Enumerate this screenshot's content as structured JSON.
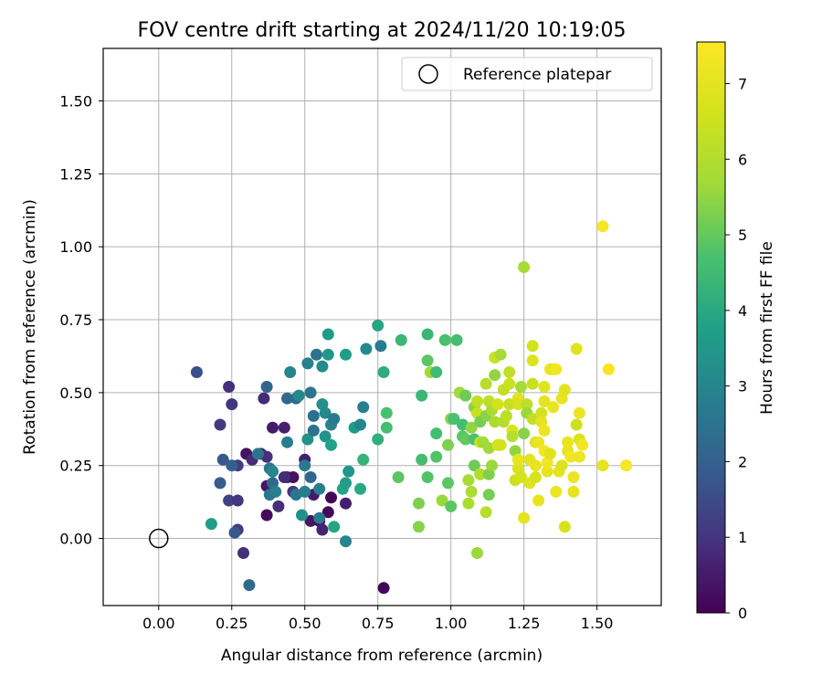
{
  "chart_data": {
    "type": "scatter",
    "title": "FOV centre drift starting at 2024/11/20 10:19:05",
    "xlabel": "Angular distance from reference (arcmin)",
    "ylabel": "Rotation from reference (arcmin)",
    "xlim": [
      -0.19,
      1.72
    ],
    "ylim": [
      -0.23,
      1.68
    ],
    "xticks": [
      "0.00",
      "0.25",
      "0.50",
      "0.75",
      "1.00",
      "1.25",
      "1.50"
    ],
    "yticks": [
      "0.00",
      "0.25",
      "0.50",
      "0.75",
      "1.00",
      "1.25",
      "1.50"
    ],
    "grid": true,
    "colormap": "viridis",
    "colorbar": {
      "label": "Hours from first FF file",
      "range": [
        0,
        7.55
      ],
      "ticks": [
        "0",
        "1",
        "2",
        "3",
        "4",
        "5",
        "6",
        "7"
      ]
    },
    "legend": {
      "position": "top-right",
      "entries": [
        {
          "label": "Reference platepar",
          "marker": "open-circle",
          "x": 0.0,
          "y": 0.0
        }
      ]
    },
    "series": [
      {
        "points": [
          [
            0.77,
            -0.17,
            0.1
          ],
          [
            0.3,
            0.29,
            0.3
          ],
          [
            0.32,
            0.27,
            0.8
          ],
          [
            0.37,
            0.08,
            0.2
          ],
          [
            0.37,
            0.18,
            0.4
          ],
          [
            0.39,
            0.38,
            0.5
          ],
          [
            0.43,
            0.38,
            0.6
          ],
          [
            0.44,
            0.21,
            0.7
          ],
          [
            0.46,
            0.21,
            0.3
          ],
          [
            0.52,
            0.06,
            0.4
          ],
          [
            0.55,
            0.06,
            0.2
          ],
          [
            0.53,
            0.15,
            0.5
          ],
          [
            0.56,
            0.03,
            0.7
          ],
          [
            0.58,
            0.09,
            0.2
          ],
          [
            0.59,
            0.14,
            0.1
          ],
          [
            0.64,
            0.12,
            0.6
          ],
          [
            0.5,
            0.27,
            0.6
          ],
          [
            0.36,
            0.48,
            0.8
          ],
          [
            0.24,
            0.52,
            0.9
          ],
          [
            0.25,
            0.46,
            1.0
          ],
          [
            0.21,
            0.39,
            1.1
          ],
          [
            0.27,
            0.25,
            1.2
          ],
          [
            0.24,
            0.13,
            1.3
          ],
          [
            0.27,
            0.13,
            1.0
          ],
          [
            0.27,
            0.03,
            1.2
          ],
          [
            0.29,
            -0.05,
            0.9
          ],
          [
            0.26,
            0.02,
            1.8
          ],
          [
            0.35,
            0.29,
            0.7
          ],
          [
            0.37,
            0.28,
            0.9
          ],
          [
            0.41,
            0.11,
            0.9
          ],
          [
            0.43,
            0.21,
            0.8
          ],
          [
            0.46,
            0.16,
            1.1
          ],
          [
            0.13,
            0.57,
            1.6
          ],
          [
            0.22,
            0.27,
            1.8
          ],
          [
            0.21,
            0.19,
            1.9
          ],
          [
            0.25,
            0.25,
            2.0
          ],
          [
            0.31,
            -0.16,
            2.3
          ],
          [
            0.34,
            0.29,
            2.6
          ],
          [
            0.37,
            0.52,
            2.1
          ],
          [
            0.38,
            0.24,
            2.5
          ],
          [
            0.39,
            0.19,
            2.2
          ],
          [
            0.38,
            0.15,
            2.6
          ],
          [
            0.39,
            0.23,
            3.0
          ],
          [
            0.4,
            0.16,
            2.8
          ],
          [
            0.44,
            0.48,
            2.2
          ],
          [
            0.44,
            0.33,
            2.8
          ],
          [
            0.45,
            0.57,
            3.0
          ],
          [
            0.47,
            0.15,
            2.6
          ],
          [
            0.47,
            0.48,
            2.3
          ],
          [
            0.48,
            0.49,
            3.1
          ],
          [
            0.49,
            0.08,
            3.3
          ],
          [
            0.5,
            0.25,
            2.7
          ],
          [
            0.5,
            0.16,
            2.8
          ],
          [
            0.51,
            0.6,
            2.9
          ],
          [
            0.51,
            0.34,
            3.4
          ],
          [
            0.52,
            0.5,
            2.6
          ],
          [
            0.52,
            0.21,
            2.2
          ],
          [
            0.53,
            0.42,
            2.4
          ],
          [
            0.53,
            0.37,
            2.5
          ],
          [
            0.54,
            0.63,
            2.5
          ],
          [
            0.55,
            0.17,
            2.9
          ],
          [
            0.55,
            0.07,
            2.7
          ],
          [
            0.56,
            0.46,
            3.3
          ],
          [
            0.56,
            0.59,
            3.2
          ],
          [
            0.57,
            0.43,
            3.1
          ],
          [
            0.57,
            0.35,
            3.4
          ],
          [
            0.58,
            0.63,
            3.5
          ],
          [
            0.58,
            0.7,
            3.6
          ],
          [
            0.59,
            0.32,
            3.8
          ],
          [
            0.59,
            0.39,
            2.9
          ],
          [
            0.6,
            0.04,
            3.9
          ],
          [
            0.6,
            0.41,
            2.7
          ],
          [
            0.63,
            0.17,
            3.9
          ],
          [
            0.64,
            0.19,
            3.7
          ],
          [
            0.64,
            -0.01,
            3.0
          ],
          [
            0.65,
            0.23,
            3.5
          ],
          [
            0.64,
            0.63,
            3.7
          ],
          [
            0.67,
            0.38,
            3.6
          ],
          [
            0.69,
            0.39,
            3.0
          ],
          [
            0.69,
            0.17,
            4.0
          ],
          [
            0.7,
            0.45,
            2.8
          ],
          [
            0.7,
            0.27,
            4.3
          ],
          [
            0.71,
            0.65,
            3.1
          ],
          [
            0.75,
            0.73,
            3.9
          ],
          [
            0.75,
            0.34,
            4.2
          ],
          [
            0.76,
            0.66,
            2.7
          ],
          [
            0.77,
            0.57,
            4.1
          ],
          [
            0.78,
            0.38,
            4.6
          ],
          [
            0.78,
            0.43,
            4.7
          ],
          [
            0.18,
            0.05,
            3.7
          ],
          [
            0.83,
            0.68,
            4.4
          ],
          [
            0.82,
            0.21,
            4.9
          ],
          [
            0.89,
            0.04,
            5.4
          ],
          [
            0.89,
            0.12,
            5.3
          ],
          [
            0.9,
            0.49,
            4.4
          ],
          [
            0.9,
            0.27,
            4.6
          ],
          [
            0.92,
            0.7,
            4.4
          ],
          [
            0.92,
            0.61,
            4.9
          ],
          [
            0.92,
            0.21,
            4.8
          ],
          [
            0.93,
            0.57,
            5.7
          ],
          [
            0.95,
            0.57,
            4.5
          ],
          [
            0.95,
            0.36,
            4.6
          ],
          [
            0.95,
            0.28,
            4.8
          ],
          [
            0.97,
            0.13,
            5.6
          ],
          [
            0.98,
            0.68,
            4.7
          ],
          [
            0.99,
            0.19,
            4.9
          ],
          [
            0.99,
            0.32,
            5.3
          ],
          [
            1.0,
            0.11,
            4.9
          ],
          [
            1.0,
            0.41,
            5.4
          ],
          [
            1.01,
            0.41,
            4.7
          ],
          [
            1.02,
            0.68,
            4.6
          ],
          [
            1.03,
            0.5,
            5.7
          ],
          [
            1.04,
            0.35,
            4.9
          ],
          [
            1.04,
            0.39,
            4.6
          ],
          [
            1.05,
            0.34,
            5.0
          ],
          [
            1.05,
            0.49,
            5.1
          ],
          [
            1.06,
            0.2,
            5.8
          ],
          [
            1.06,
            0.12,
            5.9
          ],
          [
            1.07,
            0.38,
            5.5
          ],
          [
            1.07,
            0.16,
            5.9
          ],
          [
            1.08,
            0.45,
            5.4
          ],
          [
            1.08,
            0.34,
            4.7
          ],
          [
            1.08,
            0.25,
            5.1
          ],
          [
            1.09,
            -0.05,
            5.6
          ],
          [
            1.09,
            0.47,
            6.3
          ],
          [
            1.09,
            0.43,
            6.4
          ],
          [
            1.1,
            0.4,
            5.2
          ],
          [
            1.1,
            0.22,
            6.0
          ],
          [
            1.1,
            0.33,
            6.5
          ],
          [
            1.11,
            0.33,
            5.7
          ],
          [
            1.12,
            0.42,
            5.4
          ],
          [
            1.12,
            0.53,
            6.1
          ],
          [
            1.12,
            0.09,
            6.1
          ],
          [
            1.13,
            0.47,
            6.2
          ],
          [
            1.13,
            0.31,
            5.7
          ],
          [
            1.13,
            0.22,
            5.3
          ],
          [
            1.13,
            0.15,
            5.2
          ],
          [
            1.14,
            0.44,
            5.9
          ],
          [
            1.14,
            0.25,
            5.6
          ],
          [
            1.15,
            0.56,
            5.5
          ],
          [
            1.15,
            0.4,
            5.9
          ],
          [
            1.15,
            0.62,
            6.4
          ],
          [
            1.16,
            0.32,
            6.7
          ],
          [
            1.16,
            0.46,
            6.6
          ],
          [
            1.17,
            0.63,
            5.8
          ],
          [
            1.17,
            0.32,
            6.6
          ],
          [
            1.18,
            0.51,
            6.3
          ],
          [
            1.18,
            0.4,
            6.0
          ],
          [
            1.19,
            0.42,
            6.2
          ],
          [
            1.2,
            0.46,
            6.4
          ],
          [
            1.2,
            0.53,
            6.5
          ],
          [
            1.2,
            0.57,
            6.3
          ],
          [
            1.21,
            0.37,
            6.8
          ],
          [
            1.21,
            0.35,
            6.1
          ],
          [
            1.22,
            0.2,
            6.5
          ],
          [
            1.22,
            0.3,
            5.5
          ],
          [
            1.23,
            0.48,
            6.9
          ],
          [
            1.23,
            0.46,
            6.7
          ],
          [
            1.23,
            0.24,
            6.8
          ],
          [
            1.23,
            0.27,
            7.1
          ],
          [
            1.24,
            0.52,
            5.8
          ],
          [
            1.24,
            0.21,
            6.6
          ],
          [
            1.25,
            0.93,
            5.8
          ],
          [
            1.25,
            0.07,
            7.0
          ],
          [
            1.25,
            0.36,
            5.4
          ],
          [
            1.26,
            0.46,
            6.2
          ],
          [
            1.26,
            0.43,
            5.6
          ],
          [
            1.27,
            0.19,
            6.9
          ],
          [
            1.27,
            0.27,
            7.0
          ],
          [
            1.28,
            0.61,
            6.8
          ],
          [
            1.28,
            0.66,
            6.6
          ],
          [
            1.28,
            0.53,
            6.4
          ],
          [
            1.28,
            0.41,
            6.3
          ],
          [
            1.29,
            0.33,
            6.8
          ],
          [
            1.29,
            0.25,
            7.1
          ],
          [
            1.29,
            0.21,
            6.7
          ],
          [
            1.3,
            0.33,
            7.2
          ],
          [
            1.3,
            0.13,
            7.1
          ],
          [
            1.31,
            0.43,
            6.7
          ],
          [
            1.31,
            0.4,
            7.0
          ],
          [
            1.32,
            0.52,
            6.9
          ],
          [
            1.32,
            0.47,
            7.0
          ],
          [
            1.32,
            0.3,
            7.3
          ],
          [
            1.32,
            0.37,
            7.2
          ],
          [
            1.33,
            0.23,
            7.0
          ],
          [
            1.33,
            0.26,
            7.3
          ],
          [
            1.34,
            0.58,
            7.2
          ],
          [
            1.34,
            0.29,
            6.9
          ],
          [
            1.35,
            0.45,
            7.1
          ],
          [
            1.35,
            0.58,
            6.9
          ],
          [
            1.36,
            0.58,
            7.3
          ],
          [
            1.36,
            0.16,
            7.2
          ],
          [
            1.37,
            0.23,
            7.0
          ],
          [
            1.38,
            0.25,
            6.8
          ],
          [
            1.38,
            0.48,
            7.1
          ],
          [
            1.39,
            0.51,
            6.9
          ],
          [
            1.39,
            0.04,
            6.7
          ],
          [
            1.4,
            0.3,
            7.0
          ],
          [
            1.4,
            0.33,
            7.1
          ],
          [
            1.41,
            0.28,
            7.3
          ],
          [
            1.42,
            0.16,
            7.0
          ],
          [
            1.42,
            0.21,
            7.2
          ],
          [
            1.43,
            0.65,
            6.9
          ],
          [
            1.43,
            0.39,
            6.5
          ],
          [
            1.44,
            0.43,
            7.2
          ],
          [
            1.44,
            0.34,
            6.8
          ],
          [
            1.44,
            0.28,
            7.2
          ],
          [
            1.45,
            0.32,
            7.3
          ],
          [
            1.52,
            0.25,
            7.0
          ],
          [
            1.52,
            1.07,
            7.4
          ],
          [
            1.54,
            0.58,
            7.4
          ],
          [
            1.6,
            0.25,
            7.4
          ]
        ]
      }
    ]
  }
}
